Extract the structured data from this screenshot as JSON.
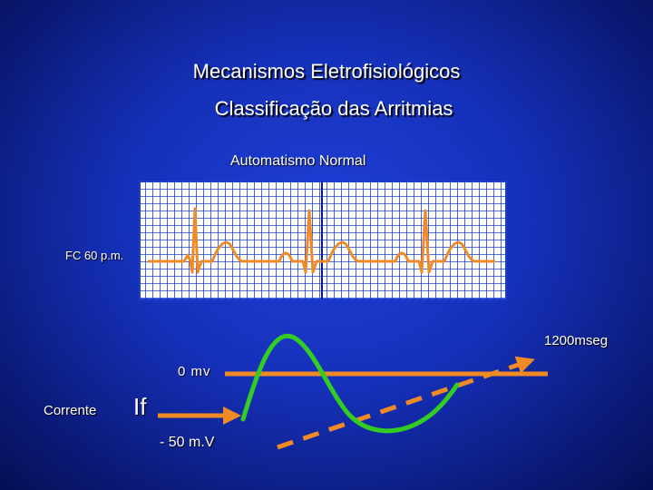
{
  "title": {
    "line1": "Mecanismos Eletrofisiológicos",
    "line2": "Classificação das  Arritmias"
  },
  "ecg": {
    "title": "Automatismo Normal",
    "rate_label": "FC 60 p.m."
  },
  "potential": {
    "time_label": "1200mseg",
    "zero_label": "0 mv",
    "current_label": "Corrente",
    "current_name": "If",
    "threshold_label": "- 50 m.V"
  },
  "colors": {
    "background": "#1530b8",
    "ecg_trace": "#f08a24",
    "baseline": "#f08a24",
    "action_potential": "#33cc22",
    "arrow": "#f08a24",
    "grid_paper": "#ffffff",
    "grid_lines": "#1a3fcf"
  }
}
